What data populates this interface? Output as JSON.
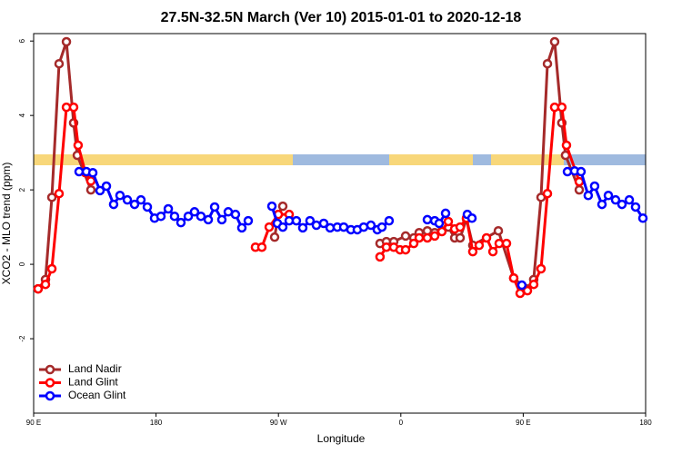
{
  "chart_data": {
    "type": "line",
    "title": "27.5N-32.5N March (Ver 10)   2015-01-01 to 2020-12-18",
    "x_label": "Longitude",
    "y_label": "XCO2 - MLO trend (ppm)",
    "xlim": [
      90,
      540
    ],
    "xticks": [
      {
        "value": 90,
        "label": "90 E"
      },
      180,
      {
        "value": 270,
        "label": "90 W"
      },
      {
        "value": 360,
        "label": "0"
      },
      {
        "value": 450,
        "label": "90 E"
      },
      {
        "value": 540,
        "label": "180"
      }
    ],
    "ylim": [
      -4,
      6.2
    ],
    "yticks": [
      -2,
      0,
      2,
      4,
      6
    ],
    "legend": "bottom-left",
    "series": [
      {
        "name": "Land Nadir",
        "color": "#a52a2a",
        "x": [
          93.3,
          98.7,
          103.4,
          108.7,
          114.1,
          119.4,
          122.1,
          132.1,
          null,
          267.2,
          269.9,
          273.2,
          null,
          344.7,
          349.4,
          354.8,
          363.5,
          369.5,
          373.5,
          379.5,
          384.9,
          390.2,
          394.9,
          399.6,
          403.6,
          408.3,
          412.9,
          431.7,
          443.0,
          452.4,
          457.7,
          463.1,
          467.8,
          473.1,
          478.4,
          481.1,
          491.2
        ],
        "values": [
          -0.66,
          -0.41,
          1.8,
          5.39,
          5.98,
          3.8,
          2.93,
          2.0,
          null,
          0.73,
          1.34,
          1.56,
          null,
          0.56,
          0.61,
          0.61,
          0.76,
          0.71,
          0.85,
          0.9,
          0.85,
          0.9,
          1.0,
          0.71,
          0.71,
          1.22,
          0.51,
          0.9,
          -0.37,
          -0.66,
          -0.41,
          1.8,
          5.39,
          5.98,
          3.8,
          2.93,
          2.0
        ]
      },
      {
        "name": "Land Glint",
        "color": "#ff0000",
        "x": [
          93.3,
          98.7,
          103.4,
          108.7,
          114.1,
          119.4,
          122.7,
          128.1,
          132.1,
          null,
          253.1,
          257.8,
          263.2,
          269.9,
          277.9,
          null,
          344.7,
          349.4,
          354.8,
          359.4,
          363.5,
          369.5,
          373.5,
          379.5,
          384.9,
          390.2,
          394.9,
          399.6,
          403.6,
          408.3,
          412.9,
          417.6,
          423.0,
          427.7,
          432.3,
          437.7,
          443.0,
          447.7,
          453.1,
          457.7,
          463.1,
          467.8,
          473.1,
          478.4,
          481.8,
          491.2
        ],
        "values": [
          -0.66,
          -0.54,
          -0.12,
          1.9,
          4.22,
          4.22,
          3.2,
          2.46,
          2.24,
          null,
          0.46,
          0.46,
          1.0,
          1.34,
          1.34,
          null,
          0.2,
          0.46,
          0.46,
          0.39,
          0.39,
          0.56,
          0.71,
          0.71,
          0.76,
          0.88,
          1.15,
          0.95,
          1.0,
          1.24,
          0.34,
          0.51,
          0.71,
          0.34,
          0.56,
          0.56,
          -0.37,
          -0.78,
          -0.71,
          -0.54,
          -0.12,
          1.9,
          4.22,
          4.22,
          3.2,
          2.22
        ]
      },
      {
        "name": "Ocean Glint",
        "color": "#0000ff",
        "x": [
          123.4,
          128.8,
          133.5,
          138.8,
          143.5,
          148.8,
          153.5,
          158.9,
          164.2,
          168.9,
          173.6,
          178.9,
          183.6,
          189.0,
          193.6,
          198.3,
          203.7,
          208.3,
          213.0,
          218.4,
          223.1,
          228.4,
          233.1,
          238.4,
          243.1,
          247.8,
          null,
          265.2,
          269.2,
          273.2,
          277.9,
          283.2,
          287.9,
          293.2,
          297.9,
          303.3,
          308.0,
          313.3,
          318.0,
          323.3,
          328.0,
          332.7,
          338.0,
          342.7,
          346.1,
          351.4,
          null,
          379.5,
          384.9,
          388.2,
          392.9,
          null,
          408.9,
          412.3,
          null,
          449.0,
          null,
          482.5,
          487.8,
          492.5,
          497.8,
          502.5,
          507.9,
          512.6,
          517.9,
          522.6,
          528.0,
          532.6,
          538.0
        ],
        "values": [
          2.49,
          2.49,
          2.46,
          1.98,
          2.1,
          1.61,
          1.85,
          1.73,
          1.61,
          1.73,
          1.54,
          1.24,
          1.29,
          1.49,
          1.29,
          1.12,
          1.29,
          1.41,
          1.29,
          1.2,
          1.54,
          1.2,
          1.41,
          1.34,
          0.98,
          1.17,
          null,
          1.56,
          1.1,
          1.0,
          1.17,
          1.17,
          0.98,
          1.17,
          1.05,
          1.1,
          0.98,
          1.0,
          1.0,
          0.93,
          0.93,
          1.0,
          1.05,
          0.93,
          1.0,
          1.17,
          null,
          1.2,
          1.17,
          1.1,
          1.37,
          null,
          1.34,
          1.24,
          null,
          -0.56,
          null,
          2.49,
          2.51,
          2.49,
          1.85,
          2.1,
          1.61,
          1.85,
          1.73,
          1.61,
          1.73,
          1.54,
          1.24
        ]
      }
    ]
  }
}
